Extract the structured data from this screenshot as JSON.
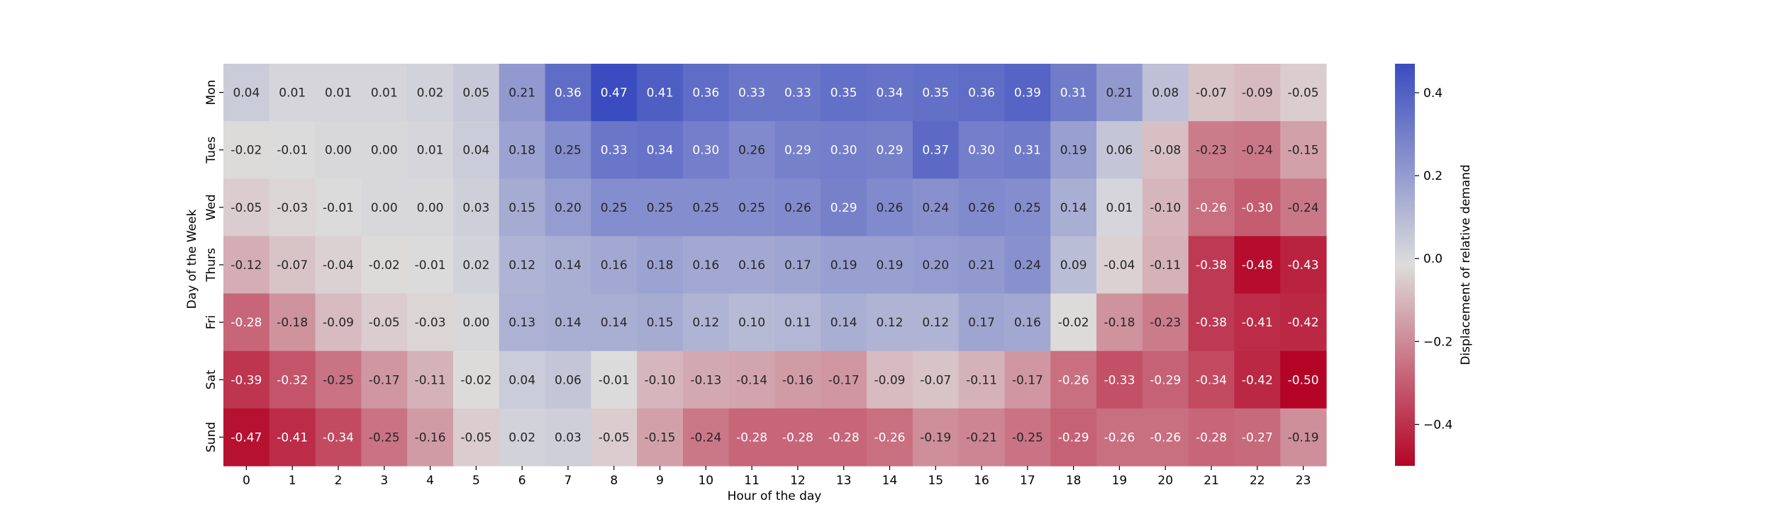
{
  "chart_data": {
    "type": "heatmap",
    "title": "",
    "xlabel": "Hour of the day",
    "ylabel": "Day of the Week",
    "x_categories": [
      "0",
      "1",
      "2",
      "3",
      "4",
      "5",
      "6",
      "7",
      "8",
      "9",
      "10",
      "11",
      "12",
      "13",
      "14",
      "15",
      "16",
      "17",
      "18",
      "19",
      "20",
      "21",
      "22",
      "23"
    ],
    "y_categories": [
      "Mon",
      "Tues",
      "Wed",
      "Thurs",
      "Fri",
      "Sat",
      "Sund"
    ],
    "values": [
      [
        0.04,
        0.01,
        0.01,
        0.01,
        0.02,
        0.05,
        0.21,
        0.36,
        0.47,
        0.41,
        0.36,
        0.33,
        0.33,
        0.35,
        0.34,
        0.35,
        0.36,
        0.39,
        0.31,
        0.21,
        0.08,
        -0.07,
        -0.09,
        -0.05
      ],
      [
        -0.02,
        -0.01,
        -0.0,
        0.0,
        0.01,
        0.04,
        0.18,
        0.25,
        0.33,
        0.34,
        0.3,
        0.26,
        0.29,
        0.3,
        0.29,
        0.37,
        0.3,
        0.31,
        0.19,
        0.06,
        -0.08,
        -0.23,
        -0.24,
        -0.15
      ],
      [
        -0.05,
        -0.03,
        -0.01,
        -0.0,
        0.0,
        0.03,
        0.15,
        0.2,
        0.25,
        0.25,
        0.25,
        0.25,
        0.26,
        0.29,
        0.26,
        0.24,
        0.26,
        0.25,
        0.14,
        0.01,
        -0.1,
        -0.26,
        -0.3,
        -0.24
      ],
      [
        -0.12,
        -0.07,
        -0.04,
        -0.02,
        -0.01,
        0.02,
        0.12,
        0.14,
        0.16,
        0.18,
        0.16,
        0.16,
        0.17,
        0.19,
        0.19,
        0.2,
        0.21,
        0.24,
        0.09,
        -0.04,
        -0.11,
        -0.38,
        -0.48,
        -0.43
      ],
      [
        -0.28,
        -0.18,
        -0.09,
        -0.05,
        -0.03,
        0.0,
        0.13,
        0.14,
        0.14,
        0.15,
        0.12,
        0.1,
        0.11,
        0.14,
        0.12,
        0.12,
        0.17,
        0.16,
        -0.02,
        -0.18,
        -0.23,
        -0.38,
        -0.41,
        -0.42
      ],
      [
        -0.39,
        -0.32,
        -0.25,
        -0.17,
        -0.11,
        -0.02,
        0.04,
        0.06,
        -0.01,
        -0.1,
        -0.13,
        -0.14,
        -0.16,
        -0.17,
        -0.09,
        -0.07,
        -0.11,
        -0.17,
        -0.26,
        -0.33,
        -0.29,
        -0.34,
        -0.42,
        -0.5
      ],
      [
        -0.47,
        -0.41,
        -0.34,
        -0.25,
        -0.16,
        -0.05,
        0.02,
        0.03,
        -0.05,
        -0.15,
        -0.24,
        -0.28,
        -0.28,
        -0.28,
        -0.26,
        -0.19,
        -0.21,
        -0.25,
        -0.29,
        -0.26,
        -0.26,
        -0.28,
        -0.27,
        -0.19
      ]
    ],
    "value_format_decimals": 2,
    "colormap": "coolwarm_r",
    "color_low": "#b40426",
    "color_mid": "#dddcdc",
    "color_high": "#3b4cc0",
    "vmin": -0.5,
    "vmax": 0.47,
    "colorbar": {
      "label": "Displacement of relative demand",
      "ticks": [
        0.4,
        0.2,
        0.0,
        -0.2,
        -0.4
      ],
      "tick_labels": [
        "0.4",
        "0.2",
        "0.0",
        "−0.2",
        "−0.4"
      ]
    },
    "grid": false,
    "annotated": true
  }
}
